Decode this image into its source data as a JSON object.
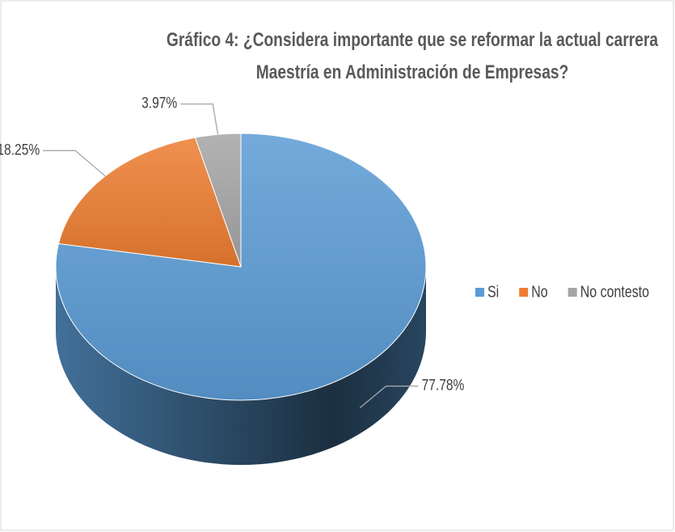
{
  "chart_data": {
    "type": "pie",
    "title": "Gráfico 4: ¿Considera importante que se reformar la actual carrera Maestría en Administración de Empresas?",
    "categories": [
      "Si",
      "No",
      "No contesto"
    ],
    "values": [
      77.78,
      18.25,
      3.97
    ],
    "value_labels": [
      "77.78%",
      "18.25%",
      "3.97%"
    ],
    "colors": [
      "#5b9bd5",
      "#ed7d31",
      "#a5a5a5"
    ],
    "legend": "right"
  }
}
